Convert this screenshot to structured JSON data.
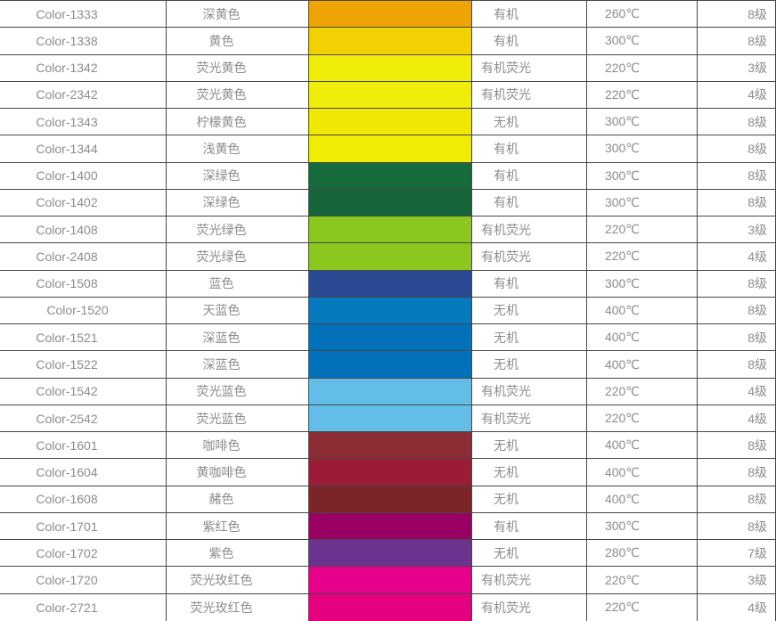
{
  "page": {
    "background": "#ffffff"
  },
  "colors": {
    "border": "#474747",
    "text": "#8c8c8c"
  },
  "table": {
    "columns": [
      "code",
      "name",
      "swatch",
      "type",
      "temperature",
      "grade"
    ],
    "rows": [
      {
        "code": "Color-1333",
        "name": "深黄色",
        "swatch": "#eea405",
        "type": "有机",
        "temperature": "260℃",
        "grade": "8级"
      },
      {
        "code": "Color-1338",
        "name": "黄色",
        "swatch": "#f2d103",
        "type": "有机",
        "temperature": "300℃",
        "grade": "8级"
      },
      {
        "code": "Color-1342",
        "name": "荧光黄色",
        "swatch": "#f0ed0b",
        "type": "有机荧光",
        "temperature": "220℃",
        "grade": "3级"
      },
      {
        "code": "Color-2342",
        "name": "荧光黄色",
        "swatch": "#f0ed0b",
        "type": "有机荧光",
        "temperature": "220℃",
        "grade": "4级"
      },
      {
        "code": "Color-1343",
        "name": "柠檬黄色",
        "swatch": "#f1e704",
        "type": "无机",
        "temperature": "300℃",
        "grade": "8级"
      },
      {
        "code": "Color-1344",
        "name": "浅黄色",
        "swatch": "#f1ec06",
        "type": "有机",
        "temperature": "300℃",
        "grade": "8级"
      },
      {
        "code": "Color-1400",
        "name": "深绿色",
        "swatch": "#166a3c",
        "type": "有机",
        "temperature": "300℃",
        "grade": "8级"
      },
      {
        "code": "Color-1402",
        "name": "深绿色",
        "swatch": "#15663a",
        "type": "有机",
        "temperature": "300℃",
        "grade": "8级"
      },
      {
        "code": "Color-1408",
        "name": "荧光绿色",
        "swatch": "#8cc71f",
        "type": "有机荧光",
        "temperature": "220℃",
        "grade": "3级"
      },
      {
        "code": "Color-2408",
        "name": "荧光绿色",
        "swatch": "#8cc71f",
        "type": "有机荧光",
        "temperature": "220℃",
        "grade": "4级"
      },
      {
        "code": "Color-1508",
        "name": "蓝色",
        "swatch": "#2a4a94",
        "type": "有机",
        "temperature": "300℃",
        "grade": "8级"
      },
      {
        "code": "Color-1520",
        "name": "天蓝色",
        "swatch": "#0679bf",
        "type": "无机",
        "temperature": "400℃",
        "grade": "8级",
        "indent": true
      },
      {
        "code": "Color-1521",
        "name": "深蓝色",
        "swatch": "#0371b9",
        "type": "无机",
        "temperature": "400℃",
        "grade": "8级"
      },
      {
        "code": "Color-1522",
        "name": "深蓝色",
        "swatch": "#0371b9",
        "type": "无机",
        "temperature": "400℃",
        "grade": "8级"
      },
      {
        "code": "Color-1542",
        "name": "荧光蓝色",
        "swatch": "#63bde9",
        "type": "有机荧光",
        "temperature": "220℃",
        "grade": "4级"
      },
      {
        "code": "Color-2542",
        "name": "荧光蓝色",
        "swatch": "#63bde9",
        "type": "有机荧光",
        "temperature": "220℃",
        "grade": "4级"
      },
      {
        "code": "Color-1601",
        "name": "咖啡色",
        "swatch": "#8c2d35",
        "type": "无机",
        "temperature": "400℃",
        "grade": "8级"
      },
      {
        "code": "Color-1604",
        "name": "黄咖啡色",
        "swatch": "#9c1c37",
        "type": "无机",
        "temperature": "400℃",
        "grade": "8级"
      },
      {
        "code": "Color-1608",
        "name": "赭色",
        "swatch": "#7b2529",
        "type": "无机",
        "temperature": "400℃",
        "grade": "8级"
      },
      {
        "code": "Color-1701",
        "name": "紫红色",
        "swatch": "#9a0063",
        "type": "有机",
        "temperature": "300℃",
        "grade": "8级"
      },
      {
        "code": "Color-1702",
        "name": "紫色",
        "swatch": "#6b338f",
        "type": "无机",
        "temperature": "280℃",
        "grade": "7级"
      },
      {
        "code": "Color-1720",
        "name": "荧光玫红色",
        "swatch": "#e6008b",
        "type": "有机荧光",
        "temperature": "220℃",
        "grade": "3级"
      },
      {
        "code": "Color-2721",
        "name": "荧光玫红色",
        "swatch": "#e50080",
        "type": "有机荧光",
        "temperature": "220℃",
        "grade": "4级"
      }
    ]
  }
}
